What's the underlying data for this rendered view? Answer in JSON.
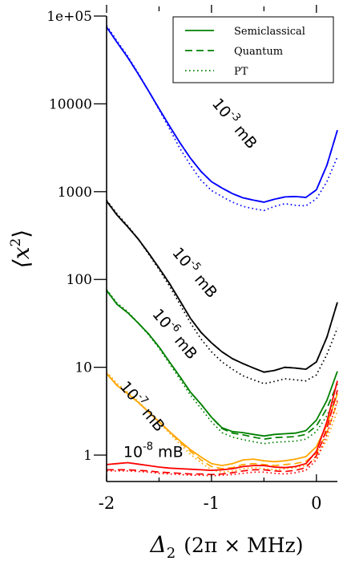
{
  "chart_data": {
    "type": "line",
    "xlabel_symbol": "Δ",
    "xlabel_sub": "2",
    "xlabel_rest": "(2π × MHz)",
    "ylabel_base": "⟨x",
    "ylabel_sup": "2",
    "ylabel_end": "⟩",
    "yscale": "log",
    "xlim": [
      -2.0,
      0.2
    ],
    "ylim": [
      0.5,
      100000
    ],
    "x_ticks": [
      -2,
      -1,
      0
    ],
    "x_tick_labels": [
      "-2",
      "-1",
      "0"
    ],
    "y_ticks": [
      1,
      10,
      100,
      1000,
      10000,
      100000
    ],
    "y_tick_labels": [
      "1",
      "10",
      "100",
      "1000",
      "10000",
      "1e+05"
    ],
    "legend": {
      "position": "top-right",
      "entries": [
        {
          "label": "Semiclassical",
          "style": "solid"
        },
        {
          "label": "Quantum",
          "style": "dashed"
        },
        {
          "label": "PT",
          "style": "dotted"
        }
      ]
    },
    "annotations": [
      {
        "base": "10",
        "exp": "-3",
        "unit": "mB",
        "x": -1.0,
        "y": 10000,
        "angle": 50
      },
      {
        "base": "10",
        "exp": "-5",
        "unit": "mB",
        "x": -1.38,
        "y": 200,
        "angle": 50
      },
      {
        "base": "10",
        "exp": "-6",
        "unit": "mB",
        "x": -1.57,
        "y": 40,
        "angle": 50
      },
      {
        "base": "10",
        "exp": "-7",
        "unit": "mB",
        "x": -1.88,
        "y": 6,
        "angle": 50
      },
      {
        "base": "10",
        "exp": "-8",
        "unit": "mB",
        "x": -1.84,
        "y": 0.95,
        "angle": 0
      }
    ],
    "series": [
      {
        "group": "10^-3 mB",
        "color": "#0000ff",
        "x": [
          -2.0,
          -1.9,
          -1.8,
          -1.7,
          -1.6,
          -1.5,
          -1.4,
          -1.3,
          -1.2,
          -1.1,
          -1.0,
          -0.9,
          -0.8,
          -0.7,
          -0.6,
          -0.5,
          -0.4,
          -0.3,
          -0.2,
          -0.1,
          0.0,
          0.1,
          0.2
        ],
        "semiclassical": [
          75000,
          50000,
          34000,
          22000,
          14000,
          8800,
          5600,
          3600,
          2400,
          1700,
          1300,
          1100,
          950,
          850,
          800,
          760,
          820,
          870,
          880,
          860,
          1050,
          2000,
          5000
        ],
        "quantum": [
          75000,
          50000,
          34000,
          22000,
          14000,
          8800,
          5600,
          3600,
          2400,
          1700,
          1300,
          1100,
          950,
          850,
          800,
          760,
          820,
          870,
          880,
          860,
          1050,
          2000,
          5000
        ],
        "pt": [
          78000,
          52000,
          35000,
          22500,
          14000,
          8600,
          5200,
          3100,
          2000,
          1350,
          1030,
          880,
          760,
          680,
          640,
          610,
          680,
          730,
          700,
          690,
          830,
          1300,
          2500
        ]
      },
      {
        "group": "10^-5 mB",
        "color": "#000000",
        "x": [
          -2.0,
          -1.9,
          -1.8,
          -1.7,
          -1.6,
          -1.5,
          -1.4,
          -1.3,
          -1.2,
          -1.1,
          -1.0,
          -0.9,
          -0.8,
          -0.7,
          -0.6,
          -0.5,
          -0.4,
          -0.3,
          -0.2,
          -0.1,
          0.0,
          0.1,
          0.2
        ],
        "semiclassical": [
          780,
          540,
          400,
          290,
          200,
          135,
          90,
          57,
          36,
          25,
          19,
          15,
          12.5,
          11,
          9.8,
          8.8,
          9.2,
          10,
          9.8,
          9.5,
          11.5,
          22,
          55
        ],
        "quantum": [
          780,
          540,
          400,
          290,
          200,
          135,
          90,
          57,
          36,
          25,
          19,
          15,
          12.5,
          11,
          9.8,
          8.8,
          9.2,
          10,
          9.8,
          9.5,
          11.5,
          22,
          55
        ],
        "pt": [
          800,
          560,
          410,
          290,
          195,
          130,
          84,
          52,
          32,
          21,
          15,
          11.5,
          9.5,
          8,
          7.2,
          6.5,
          6.9,
          7.4,
          7.2,
          7,
          8.2,
          14,
          28
        ]
      },
      {
        "group": "10^-6 mB",
        "color": "#008000",
        "x": [
          -2.0,
          -1.9,
          -1.8,
          -1.7,
          -1.6,
          -1.5,
          -1.4,
          -1.3,
          -1.2,
          -1.1,
          -1.0,
          -0.9,
          -0.8,
          -0.7,
          -0.6,
          -0.5,
          -0.4,
          -0.3,
          -0.2,
          -0.1,
          0.0,
          0.1,
          0.2
        ],
        "semiclassical": [
          75,
          52,
          42,
          32,
          24,
          17,
          11.5,
          7.8,
          5.2,
          3.8,
          2.7,
          2.05,
          1.85,
          1.8,
          1.72,
          1.65,
          1.72,
          1.75,
          1.78,
          1.9,
          2.5,
          4.2,
          9
        ],
        "quantum": [
          75,
          52,
          42,
          32,
          24,
          17,
          11.5,
          7.8,
          5.2,
          3.8,
          2.7,
          2.0,
          1.78,
          1.7,
          1.6,
          1.52,
          1.58,
          1.6,
          1.62,
          1.72,
          2.15,
          3.4,
          6.5
        ],
        "pt": [
          77,
          54,
          43,
          32,
          23.5,
          16.5,
          11,
          7.3,
          4.8,
          3.4,
          2.4,
          1.8,
          1.6,
          1.5,
          1.42,
          1.35,
          1.4,
          1.42,
          1.44,
          1.52,
          1.85,
          2.8,
          5
        ]
      },
      {
        "group": "10^-7 mB",
        "color": "#ffa500",
        "x": [
          -2.0,
          -1.9,
          -1.8,
          -1.7,
          -1.6,
          -1.5,
          -1.4,
          -1.3,
          -1.2,
          -1.1,
          -1.0,
          -0.9,
          -0.8,
          -0.7,
          -0.6,
          -0.5,
          -0.4,
          -0.3,
          -0.2,
          -0.1,
          0.0,
          0.1,
          0.2
        ],
        "semiclassical": [
          8.5,
          6.2,
          5.0,
          4.0,
          3.1,
          2.4,
          1.85,
          1.45,
          1.15,
          0.95,
          0.8,
          0.76,
          0.8,
          0.88,
          0.9,
          0.86,
          0.84,
          0.86,
          0.9,
          0.96,
          1.25,
          2.2,
          5
        ],
        "quantum": [
          8.5,
          6.2,
          5.0,
          4.0,
          3.1,
          2.4,
          1.85,
          1.4,
          1.1,
          0.88,
          0.74,
          0.7,
          0.72,
          0.78,
          0.8,
          0.78,
          0.76,
          0.78,
          0.8,
          0.85,
          1.05,
          1.8,
          4
        ],
        "pt": [
          8.9,
          6.5,
          5.2,
          4.1,
          3.1,
          2.35,
          1.78,
          1.33,
          1.02,
          0.82,
          0.68,
          0.64,
          0.66,
          0.7,
          0.72,
          0.7,
          0.68,
          0.7,
          0.72,
          0.76,
          0.92,
          1.5,
          3.2
        ]
      },
      {
        "group": "10^-8 mB",
        "color": "#ff0000",
        "x": [
          -2.0,
          -1.9,
          -1.8,
          -1.7,
          -1.6,
          -1.5,
          -1.4,
          -1.3,
          -1.2,
          -1.1,
          -1.0,
          -0.9,
          -0.8,
          -0.7,
          -0.6,
          -0.5,
          -0.4,
          -0.3,
          -0.2,
          -0.1,
          0.0,
          0.1,
          0.2
        ],
        "semiclassical": [
          0.78,
          0.8,
          0.82,
          0.79,
          0.76,
          0.73,
          0.71,
          0.7,
          0.69,
          0.68,
          0.67,
          0.68,
          0.7,
          0.74,
          0.76,
          0.76,
          0.73,
          0.72,
          0.74,
          0.8,
          1.1,
          2.4,
          7
        ],
        "quantum": [
          0.68,
          0.68,
          0.68,
          0.67,
          0.66,
          0.64,
          0.63,
          0.62,
          0.61,
          0.61,
          0.6,
          0.61,
          0.63,
          0.66,
          0.68,
          0.68,
          0.66,
          0.65,
          0.67,
          0.72,
          0.98,
          2.0,
          5.5
        ],
        "pt": [
          0.66,
          0.66,
          0.66,
          0.65,
          0.64,
          0.62,
          0.61,
          0.6,
          0.59,
          0.59,
          0.58,
          0.59,
          0.6,
          0.62,
          0.64,
          0.64,
          0.62,
          0.61,
          0.63,
          0.67,
          0.88,
          1.7,
          4.2
        ]
      }
    ]
  }
}
